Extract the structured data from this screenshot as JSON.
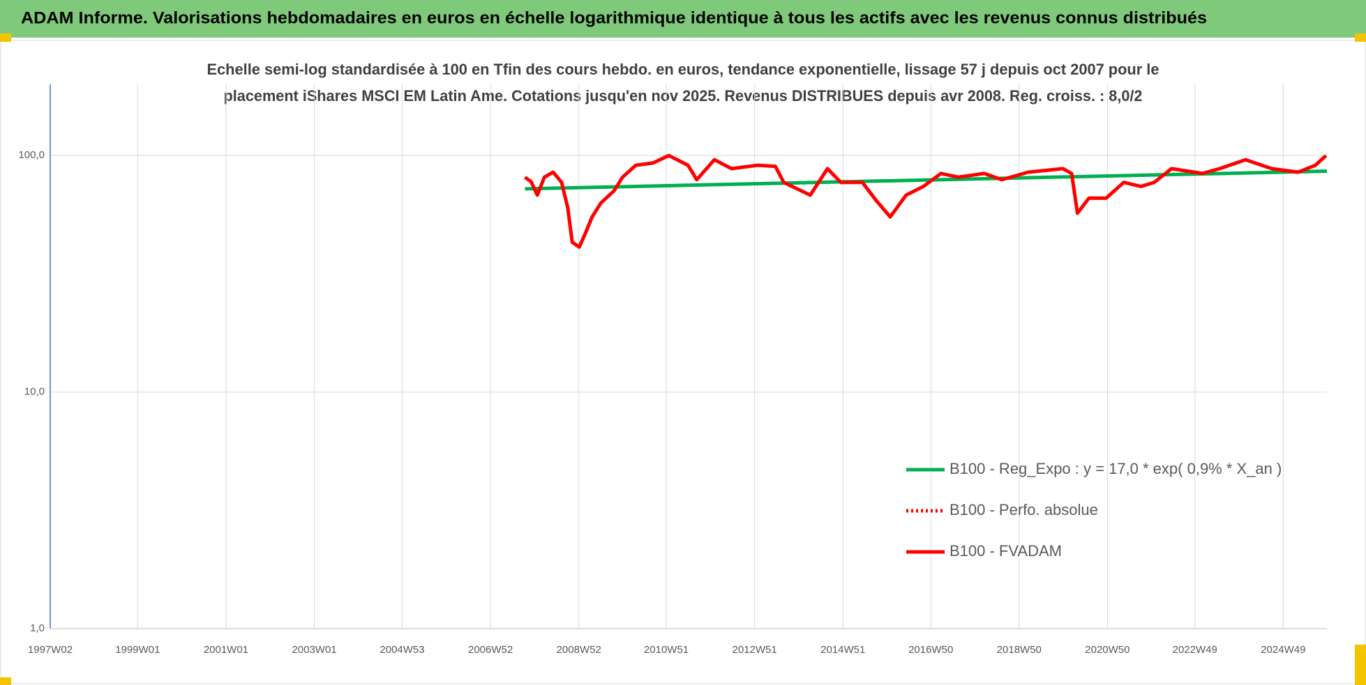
{
  "chart_data": {
    "type": "line",
    "title": "ADAM Informe. Valorisations hebdomadaires en euros en échelle logarithmique identique à tous les actifs avec les revenus connus distribués",
    "subtitle": [
      "Echelle semi-log standardisée à 100 en Tfin des cours hebdo. en euros, tendance exponentielle, lissage 57 j depuis oct 2007 pour le",
      "placement iShares MSCI EM Latin Ame. Cotations jusqu'en nov 2025. Revenus DISTRIBUES depuis avr 2008. Reg. croiss. : 8,0/2"
    ],
    "ylog": true,
    "ylim": [
      1,
      200
    ],
    "yticks": [
      {
        "value": 1,
        "label": "1,0"
      },
      {
        "value": 10,
        "label": "10,0"
      },
      {
        "value": 100,
        "label": "100,0"
      }
    ],
    "xlim": [
      1997.02,
      2025.93
    ],
    "xticks": [
      {
        "value": 1997.02,
        "label": "1997W02"
      },
      {
        "value": 1999.0,
        "label": "1999W01"
      },
      {
        "value": 2001.0,
        "label": "2001W01"
      },
      {
        "value": 2003.0,
        "label": "2003W01"
      },
      {
        "value": 2004.99,
        "label": "2004W53"
      },
      {
        "value": 2006.99,
        "label": "2006W52"
      },
      {
        "value": 2008.99,
        "label": "2008W52"
      },
      {
        "value": 2010.97,
        "label": "2010W51"
      },
      {
        "value": 2012.97,
        "label": "2012W51"
      },
      {
        "value": 2014.97,
        "label": "2014W51"
      },
      {
        "value": 2016.96,
        "label": "2016W50"
      },
      {
        "value": 2018.96,
        "label": "2018W50"
      },
      {
        "value": 2020.96,
        "label": "2020W50"
      },
      {
        "value": 2022.94,
        "label": "2022W49"
      },
      {
        "value": 2024.94,
        "label": "2024W49"
      }
    ],
    "grid": true,
    "legend": "right",
    "series": [
      {
        "name": "B100 - Reg_Expo : y = 17,0 * exp( 0,9% *  X_an )",
        "color": "#00b050",
        "style": "solid",
        "x": [
          2007.77,
          2025.93
        ],
        "values": [
          72.3,
          85.9
        ]
      },
      {
        "name": "B100 - Perfo. absolue",
        "color": "#ff0000",
        "style": "dotted",
        "x": [],
        "values": []
      },
      {
        "name": "B100 - FVADAM",
        "color": "#ff0000",
        "style": "solid",
        "x": [
          2007.77,
          2007.91,
          2008.05,
          2008.21,
          2008.41,
          2008.6,
          2008.74,
          2008.84,
          2009.0,
          2009.14,
          2009.29,
          2009.49,
          2009.79,
          2009.98,
          2010.28,
          2010.67,
          2011.03,
          2011.46,
          2011.66,
          2012.06,
          2012.45,
          2013.04,
          2013.44,
          2013.63,
          2014.23,
          2014.62,
          2014.92,
          2015.41,
          2015.71,
          2016.04,
          2016.4,
          2016.79,
          2017.19,
          2017.58,
          2018.17,
          2018.57,
          2019.16,
          2019.95,
          2020.15,
          2020.28,
          2020.54,
          2020.93,
          2021.33,
          2021.72,
          2022.02,
          2022.41,
          2023.11,
          2023.5,
          2024.09,
          2024.68,
          2025.28,
          2025.67,
          2025.91
        ],
        "values": [
          80.9,
          77.5,
          68,
          81,
          85,
          77,
          60,
          43,
          41,
          47,
          55,
          63,
          71,
          81,
          91,
          93,
          100,
          91,
          79,
          96,
          88,
          91,
          90,
          77,
          68,
          88,
          77,
          77,
          65,
          55,
          68,
          74,
          84,
          81,
          84,
          79,
          85,
          88,
          84,
          57,
          66,
          66,
          77,
          74,
          77,
          88,
          84,
          88,
          96,
          88,
          85,
          91,
          100
        ]
      }
    ]
  }
}
